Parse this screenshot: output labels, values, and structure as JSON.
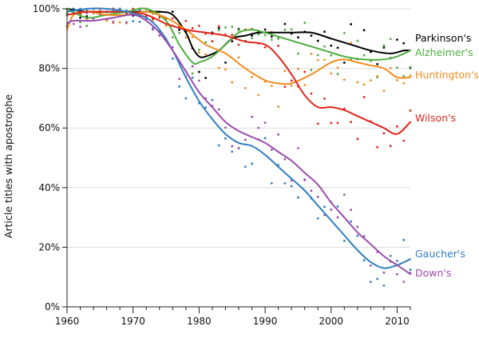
{
  "chart_data": {
    "type": "line",
    "title": "",
    "xlabel": "",
    "ylabel": "Article titles with apostrophe",
    "xlim": [
      1960,
      2012
    ],
    "ylim": [
      0,
      100
    ],
    "x_ticks": [
      1960,
      1970,
      1980,
      1990,
      2000,
      2010
    ],
    "y_ticks": [
      0,
      20,
      40,
      60,
      80,
      100
    ],
    "x_tick_labels": [
      "1960",
      "1970",
      "1980",
      "1990",
      "2000",
      "2010"
    ],
    "y_tick_labels": [
      "0%",
      "20%",
      "40%",
      "60%",
      "80%",
      "100%"
    ],
    "grid": "horizontal",
    "legend": "direct-labels-right",
    "series": [
      {
        "name": "Parkinson's",
        "color": "#000000",
        "x": [
          1960,
          1963,
          1966,
          1969,
          1972,
          1974,
          1976,
          1978,
          1979,
          1980,
          1981,
          1983,
          1985,
          1987,
          1989,
          1991,
          1994,
          1997,
          2000,
          2003,
          2006,
          2009,
          2011,
          2012
        ],
        "values": [
          100,
          99,
          99,
          99,
          99,
          99,
          98,
          92,
          87,
          84,
          84,
          86,
          90,
          91,
          92,
          92,
          92,
          92,
          90,
          88,
          86,
          85,
          86,
          86
        ]
      },
      {
        "name": "Alzheimer's",
        "color": "#4cae3f",
        "x": [
          1960,
          1963,
          1966,
          1969,
          1972,
          1975,
          1977,
          1979,
          1980,
          1982,
          1984,
          1986,
          1988,
          1990,
          1993,
          1996,
          1999,
          2002,
          2005,
          2008,
          2010,
          2012
        ],
        "values": [
          100,
          97,
          98,
          99,
          100,
          96,
          88,
          82,
          82,
          84,
          88,
          92,
          93,
          92,
          90,
          88,
          86,
          84,
          83,
          83,
          84,
          86
        ]
      },
      {
        "name": "Huntington's",
        "color": "#f28c1c",
        "x": [
          1960,
          1961,
          1963,
          1966,
          1969,
          1972,
          1975,
          1978,
          1981,
          1984,
          1987,
          1990,
          1992,
          1994,
          1997,
          2000,
          2002,
          2004,
          2006,
          2008,
          2010,
          2012
        ],
        "values": [
          93,
          98,
          99,
          98,
          98,
          99,
          97,
          93,
          88,
          85,
          80,
          76,
          75,
          75,
          78,
          82,
          83,
          82,
          81,
          80,
          77,
          77
        ]
      },
      {
        "name": "Wilson's",
        "color": "#e0261c",
        "x": [
          1960,
          1963,
          1966,
          1969,
          1972,
          1975,
          1978,
          1981,
          1984,
          1987,
          1990,
          1992,
          1994,
          1996,
          1998,
          2000,
          2002,
          2004,
          2006,
          2008,
          2010,
          2012
        ],
        "values": [
          98,
          99,
          99,
          99,
          98,
          95,
          93,
          92,
          91,
          89,
          88,
          84,
          78,
          71,
          67,
          67,
          66,
          64,
          62,
          60,
          58,
          62
        ]
      },
      {
        "name": "Gaucher's",
        "color": "#2f7ec1",
        "x": [
          1960,
          1963,
          1966,
          1969,
          1972,
          1974,
          1976,
          1978,
          1980,
          1982,
          1984,
          1986,
          1988,
          1990,
          1992,
          1994,
          1996,
          1998,
          2000,
          2002,
          2004,
          2006,
          2008,
          2010,
          2012
        ],
        "values": [
          99,
          100,
          100,
          99,
          97,
          93,
          86,
          77,
          69,
          63,
          58,
          55,
          54,
          51,
          47,
          43,
          39,
          34,
          29,
          24,
          19,
          15,
          13,
          14,
          16
        ]
      },
      {
        "name": "Down's",
        "color": "#9b4cae",
        "x": [
          1960,
          1961,
          1964,
          1967,
          1970,
          1972,
          1974,
          1976,
          1978,
          1980,
          1982,
          1984,
          1986,
          1988,
          1990,
          1992,
          1994,
          1996,
          1998,
          2000,
          2002,
          2004,
          2006,
          2008,
          2010,
          2012
        ],
        "values": [
          95,
          96,
          96,
          97,
          98,
          96,
          92,
          86,
          79,
          72,
          67,
          62,
          59,
          57,
          55,
          52,
          49,
          45,
          41,
          35,
          30,
          25,
          21,
          17,
          14,
          11
        ]
      }
    ]
  }
}
